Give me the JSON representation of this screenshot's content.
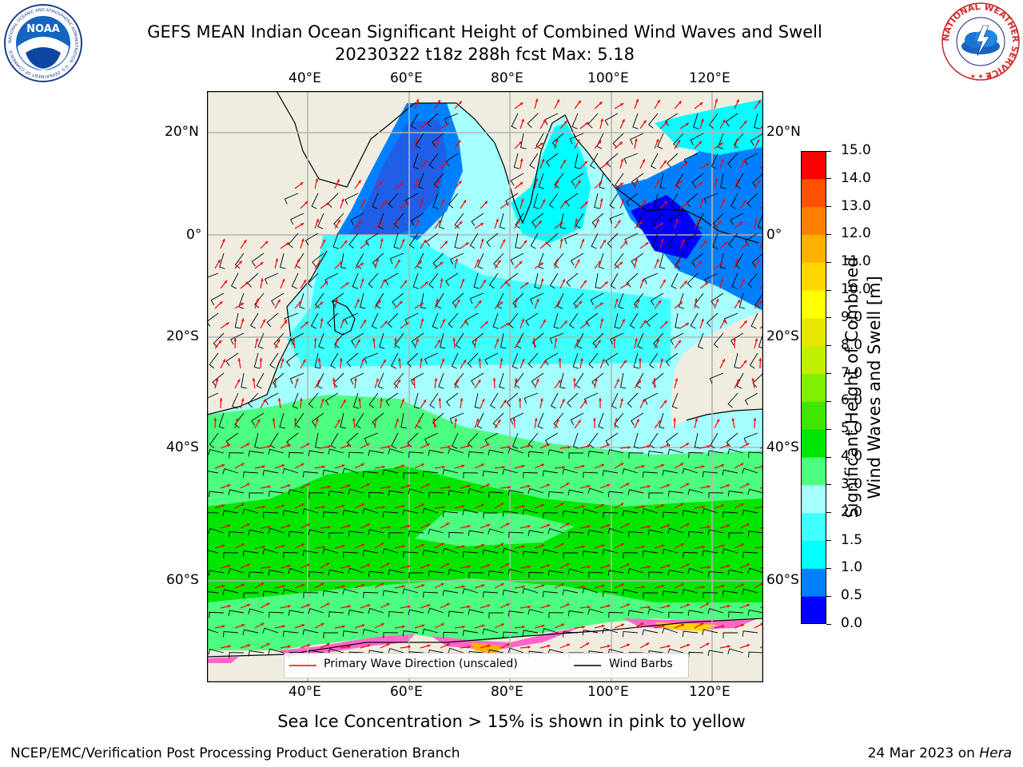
{
  "header": {
    "title_line1": "GEFS MEAN Indian Ocean Significant Height of Combined Wind Waves and Swell",
    "title_line2": "20230322 t18z 288h fcst   Max: 5.18"
  },
  "logos": {
    "noaa_center_text": "NOAA",
    "noaa_ring_text": "NATIONAL OCEANIC AND ATMOSPHERIC ADMINISTRATION · U.S. DEPARTMENT OF COMMERCE",
    "nws_ring_text": "NATIONAL WEATHER SERVICE"
  },
  "map": {
    "lon_ticks_top": [
      "40°E",
      "60°E",
      "80°E",
      "100°E",
      "120°E"
    ],
    "lon_ticks_bottom": [
      "40°E",
      "60°E",
      "80°E",
      "100°E",
      "120°E"
    ],
    "lat_ticks_left": [
      "20°N",
      "0°",
      "20°S",
      "40°S",
      "60°S"
    ],
    "lat_ticks_right": [
      "20°N",
      "0°",
      "20°S",
      "40°S",
      "60°S"
    ],
    "land_color": "#efede0",
    "grid_color": "#b4b4b4",
    "wave_arrow_color": "#ff0000",
    "wind_barb_color": "#000000",
    "max_value_m": 5.18
  },
  "legend": {
    "wave_label": "Primary Wave Direction (unscaled)",
    "barb_label": "Wind Barbs"
  },
  "colorbar": {
    "label_line1": "Significant Height of Combined",
    "label_line2": "Wind Waves and Swell [m]",
    "ticks": [
      "0.0",
      "0.5",
      "1.0",
      "1.5",
      "2.0",
      "3.0",
      "4.0",
      "5.0",
      "6.0",
      "7.0",
      "8.0",
      "9.0",
      "10.0",
      "11.0",
      "12.0",
      "13.0",
      "14.0",
      "15.0"
    ],
    "colors": [
      "#0000ff",
      "#0080ff",
      "#00ffff",
      "#40ffff",
      "#a6ffff",
      "#4dff80",
      "#00e600",
      "#40e600",
      "#80f000",
      "#c0f000",
      "#e6e600",
      "#ffff00",
      "#ffd700",
      "#ffb000",
      "#ff8000",
      "#ff5000",
      "#ff0000"
    ]
  },
  "note": "Sea Ice Concentration > 15% is shown in pink to yellow",
  "footer": {
    "left": "NCEP/EMC/Verification Post Processing Product Generation Branch",
    "date": "24 Mar 2023 on ",
    "machine": "Hera"
  }
}
